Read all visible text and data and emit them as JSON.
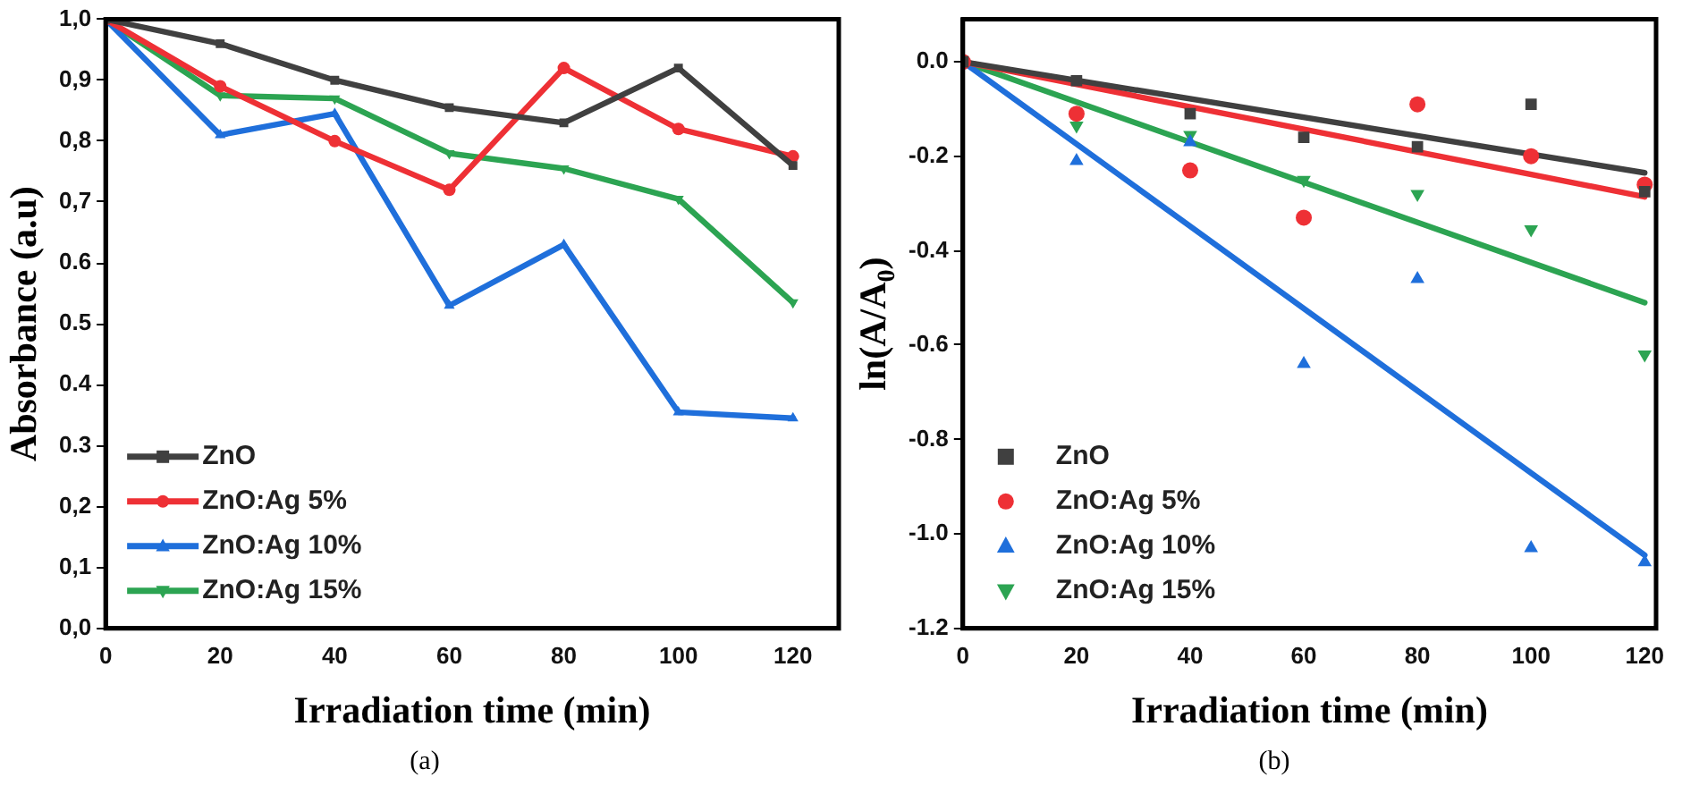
{
  "chart_data": [
    {
      "type": "line",
      "xlabel": "Irradiation time (min)",
      "ylabel": "Absorbance (a.u)",
      "x": [
        0,
        20,
        40,
        60,
        80,
        100,
        120
      ],
      "series": [
        {
          "name": "ZnO",
          "color": "#404040",
          "marker": "square",
          "values": [
            1.0,
            0.96,
            0.9,
            0.855,
            0.83,
            0.92,
            0.76
          ]
        },
        {
          "name": "ZnO:Ag 5%",
          "color": "#ee3035",
          "marker": "circle",
          "values": [
            1.0,
            0.89,
            0.8,
            0.72,
            0.92,
            0.82,
            0.775
          ]
        },
        {
          "name": "ZnO:Ag 10%",
          "color": "#1f6fdb",
          "marker": "triangle",
          "values": [
            1.0,
            0.81,
            0.845,
            0.53,
            0.63,
            0.355,
            0.345
          ]
        },
        {
          "name": "ZnO:Ag 15%",
          "color": "#2ca452",
          "marker": "triangle-down",
          "values": [
            1.0,
            0.875,
            0.87,
            0.78,
            0.755,
            0.705,
            0.535
          ]
        }
      ],
      "xlim": [
        0,
        128
      ],
      "xticks": [
        0,
        20,
        40,
        60,
        80,
        100,
        120
      ],
      "ylim": [
        0,
        1.0
      ],
      "yticks": [
        {
          "value": 0,
          "label": "0,0"
        },
        {
          "value": 0.1,
          "label": "0,1"
        },
        {
          "value": 0.2,
          "label": "0,2"
        },
        {
          "value": 0.3,
          "label": "0.3"
        },
        {
          "value": 0.4,
          "label": "0.4"
        },
        {
          "value": 0.5,
          "label": "0.5"
        },
        {
          "value": 0.6,
          "label": "0.6"
        },
        {
          "value": 0.7,
          "label": "0,7"
        },
        {
          "value": 0.8,
          "label": "0,8"
        },
        {
          "value": 0.9,
          "label": "0,9"
        },
        {
          "value": 1.0,
          "label": "1,0"
        }
      ],
      "legend": "bottom left",
      "grid": false,
      "line_style": "solid",
      "annotations": [
        "(a)"
      ]
    },
    {
      "type": "scatter",
      "xlabel": "Irradiation time (min)",
      "ylabel": "ln(A/A$_{0}$)",
      "x": [
        0,
        20,
        40,
        60,
        80,
        100,
        120
      ],
      "series": [
        {
          "name": "ZnO",
          "color": "#404040",
          "marker": "square",
          "values": [
            0,
            -0.04,
            -0.11,
            -0.16,
            -0.18,
            -0.09,
            -0.275
          ]
        },
        {
          "name": "ZnO:Ag 5%",
          "color": "#ee3035",
          "marker": "circle",
          "values": [
            0,
            -0.11,
            -0.23,
            -0.33,
            -0.09,
            -0.2,
            -0.26
          ]
        },
        {
          "name": "ZnO:Ag 10%",
          "color": "#1f6fdb",
          "marker": "triangle",
          "values": [
            null,
            -0.21,
            -0.17,
            -0.64,
            -0.46,
            -1.03,
            -1.06
          ]
        },
        {
          "name": "ZnO:Ag 15%",
          "color": "#2ca452",
          "marker": "triangle-down",
          "values": [
            null,
            -0.135,
            -0.155,
            -0.25,
            -0.28,
            -0.355,
            -0.62
          ]
        },
        {
          "type": "line",
          "color": "#404040",
          "marker": "none",
          "values": [
            0,
            null,
            null,
            null,
            null,
            null,
            -0.235
          ]
        },
        {
          "type": "line",
          "color": "#ee3035",
          "marker": "none",
          "values": [
            0,
            null,
            null,
            null,
            null,
            null,
            -0.286
          ]
        },
        {
          "type": "line",
          "color": "#1f6fdb",
          "marker": "none",
          "values": [
            0,
            null,
            null,
            null,
            null,
            null,
            -1.045
          ]
        },
        {
          "type": "line",
          "color": "#2ca452",
          "marker": "none",
          "values": [
            0,
            null,
            null,
            null,
            null,
            null,
            -0.51
          ]
        }
      ],
      "xlim": [
        0,
        122
      ],
      "xticks": [
        0,
        20,
        40,
        60,
        80,
        100,
        120
      ],
      "ylim": [
        -1.2,
        0.09
      ],
      "yticks": [
        {
          "value": -1.2,
          "label": "-1.2"
        },
        {
          "value": -1.0,
          "label": "-1.0"
        },
        {
          "value": -0.8,
          "label": "-0.8"
        },
        {
          "value": -0.6,
          "label": "-0.6"
        },
        {
          "value": -0.4,
          "label": "-0.4"
        },
        {
          "value": -0.2,
          "label": "-0.2"
        },
        {
          "value": 0,
          "label": "0.0"
        }
      ],
      "legend": "bottom left",
      "grid": false,
      "line_style": "solid",
      "annotations": [
        "(b)"
      ]
    }
  ]
}
